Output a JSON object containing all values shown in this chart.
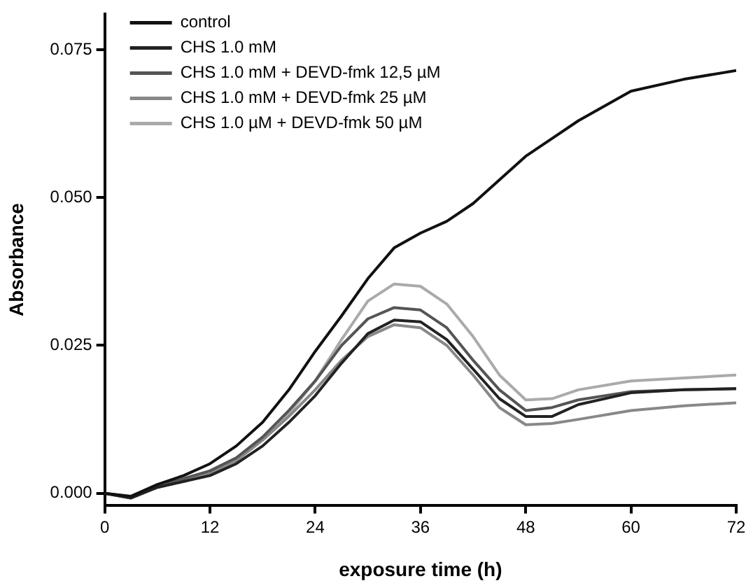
{
  "chart_data": {
    "type": "line",
    "xlabel": "exposure time (h)",
    "ylabel": "Absorbance",
    "x": [
      0,
      3,
      6,
      9,
      12,
      15,
      18,
      21,
      24,
      27,
      30,
      33,
      36,
      39,
      42,
      45,
      48,
      51,
      54,
      60,
      66,
      72
    ],
    "series": [
      {
        "name": "control",
        "color": "#111111",
        "values": [
          0,
          -0.0005,
          0.0015,
          0.003,
          0.005,
          0.008,
          0.012,
          0.0175,
          0.024,
          0.03,
          0.0363,
          0.0415,
          0.044,
          0.046,
          0.049,
          0.053,
          0.057,
          0.06,
          0.063,
          0.068,
          0.07,
          0.0715
        ]
      },
      {
        "name": "CHS 1.0 mM",
        "color": "#222222",
        "values": [
          0,
          -0.0008,
          0.001,
          0.002,
          0.003,
          0.005,
          0.008,
          0.012,
          0.0165,
          0.022,
          0.027,
          0.0293,
          0.029,
          0.026,
          0.021,
          0.016,
          0.013,
          0.013,
          0.015,
          0.017,
          0.0175,
          0.0177
        ]
      },
      {
        "name": "CHS 1.0 mM + DEVD-fmk 12,5 µM",
        "color": "#555555",
        "values": [
          0,
          -0.0006,
          0.0012,
          0.0025,
          0.0038,
          0.006,
          0.0095,
          0.014,
          0.019,
          0.025,
          0.0295,
          0.0314,
          0.031,
          0.028,
          0.0225,
          0.0175,
          0.014,
          0.0145,
          0.0158,
          0.0172,
          0.0175,
          0.0177
        ]
      },
      {
        "name": "CHS 1.0 mM + DEVD-fmk 25 µM",
        "color": "#888888",
        "values": [
          0,
          -0.0008,
          0.001,
          0.002,
          0.0033,
          0.0055,
          0.009,
          0.013,
          0.0175,
          0.0225,
          0.0265,
          0.0285,
          0.028,
          0.025,
          0.02,
          0.0145,
          0.0116,
          0.0118,
          0.0125,
          0.014,
          0.0148,
          0.0153
        ]
      },
      {
        "name": "CHS 1.0 µM + DEVD-fmk 50 µM",
        "color": "#aaaaaa",
        "values": [
          0,
          -0.0006,
          0.0012,
          0.0023,
          0.0035,
          0.0058,
          0.0092,
          0.0135,
          0.019,
          0.026,
          0.0325,
          0.0354,
          0.035,
          0.032,
          0.0265,
          0.02,
          0.0158,
          0.016,
          0.0175,
          0.019,
          0.0195,
          0.02
        ]
      }
    ],
    "xlim": [
      0,
      72
    ],
    "xticks": [
      0,
      12,
      24,
      36,
      48,
      60,
      72
    ],
    "ylim": [
      -0.002,
      0.081
    ],
    "yticks": [
      {
        "value": 0,
        "label": "0.000"
      },
      {
        "value": 0.025,
        "label": "0.025"
      },
      {
        "value": 0.05,
        "label": "0.050"
      },
      {
        "value": 0.075,
        "label": "0.075"
      }
    ],
    "legend": "top left",
    "grid": false,
    "marker": "none",
    "line_style": "solid"
  }
}
